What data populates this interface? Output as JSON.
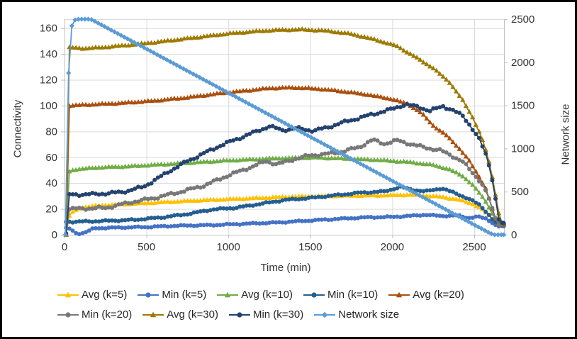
{
  "chart_data": {
    "type": "line",
    "title": "",
    "xlabel": "Time (min)",
    "ylabel_left": "Connectivity",
    "ylabel_right": "Network size",
    "grid": true,
    "x_axis": {
      "min": 0,
      "max": 2680,
      "ticks": [
        0,
        500,
        1000,
        1500,
        2000,
        2500
      ]
    },
    "left_axis": {
      "min": 0,
      "max": 167,
      "ticks": [
        0,
        20,
        40,
        60,
        80,
        100,
        120,
        140,
        160
      ]
    },
    "right_axis": {
      "min": 0,
      "max": 2500,
      "ticks": [
        0,
        500,
        1000,
        1500,
        2000,
        2500
      ]
    },
    "legend_rows": [
      [
        "avg_k5",
        "min_k5",
        "avg_k10",
        "min_k10",
        "avg_k20"
      ],
      [
        "min_k20",
        "avg_k30",
        "min_k30",
        "network_size"
      ]
    ],
    "series": [
      {
        "key": "avg_k5",
        "label": "Avg (k=5)",
        "color": "#FFC000",
        "marker": "triangle",
        "axis": "left",
        "jitter": 0.4,
        "points": [
          [
            10,
            0
          ],
          [
            20,
            12
          ],
          [
            40,
            17
          ],
          [
            70,
            19
          ],
          [
            100,
            21
          ],
          [
            200,
            22.5
          ],
          [
            350,
            23.5
          ],
          [
            500,
            24.5
          ],
          [
            650,
            25.5
          ],
          [
            800,
            26.5
          ],
          [
            1000,
            27.5
          ],
          [
            1200,
            28.5
          ],
          [
            1400,
            29.5
          ],
          [
            1600,
            30
          ],
          [
            1800,
            30.3
          ],
          [
            2000,
            30.6
          ],
          [
            2100,
            31
          ],
          [
            2200,
            30.3
          ],
          [
            2300,
            29.3
          ],
          [
            2400,
            27.3
          ],
          [
            2480,
            24.5
          ],
          [
            2540,
            20.5
          ],
          [
            2590,
            15
          ],
          [
            2620,
            10.5
          ],
          [
            2645,
            8
          ],
          [
            2680,
            8
          ]
        ]
      },
      {
        "key": "min_k5",
        "label": "Min (k=5)",
        "color": "#4472C4",
        "marker": "circle",
        "axis": "left",
        "jitter": 0.5,
        "points": [
          [
            10,
            5
          ],
          [
            40,
            4.5
          ],
          [
            60,
            1.5
          ],
          [
            100,
            0.8
          ],
          [
            140,
            2.5
          ],
          [
            180,
            5
          ],
          [
            300,
            5.5
          ],
          [
            500,
            6
          ],
          [
            700,
            7
          ],
          [
            900,
            7.5
          ],
          [
            1100,
            8.5
          ],
          [
            1300,
            9.5
          ],
          [
            1500,
            11
          ],
          [
            1700,
            12.5
          ],
          [
            1850,
            13.5
          ],
          [
            2000,
            13.8
          ],
          [
            2100,
            14.5
          ],
          [
            2200,
            15.5
          ],
          [
            2300,
            14.5
          ],
          [
            2400,
            15
          ],
          [
            2460,
            13
          ],
          [
            2520,
            14
          ],
          [
            2570,
            12.5
          ],
          [
            2610,
            9.5
          ],
          [
            2640,
            6.5
          ],
          [
            2680,
            6.5
          ]
        ]
      },
      {
        "key": "avg_k10",
        "label": "Avg (k=10)",
        "color": "#70AD47",
        "marker": "triangle",
        "axis": "left",
        "jitter": 0.4,
        "points": [
          [
            10,
            0
          ],
          [
            22,
            42
          ],
          [
            30,
            49
          ],
          [
            60,
            50.5
          ],
          [
            200,
            52
          ],
          [
            400,
            53
          ],
          [
            600,
            54.5
          ],
          [
            800,
            56
          ],
          [
            1000,
            57.5
          ],
          [
            1200,
            58.7
          ],
          [
            1400,
            59.5
          ],
          [
            1550,
            59.7
          ],
          [
            1700,
            59
          ],
          [
            1900,
            58
          ],
          [
            2100,
            56.3
          ],
          [
            2250,
            54
          ],
          [
            2350,
            50.5
          ],
          [
            2430,
            45.5
          ],
          [
            2490,
            38.5
          ],
          [
            2540,
            31
          ],
          [
            2580,
            24
          ],
          [
            2615,
            15
          ],
          [
            2645,
            8.5
          ],
          [
            2680,
            8.5
          ]
        ]
      },
      {
        "key": "min_k10",
        "label": "Min (k=10)",
        "color": "#255E91",
        "marker": "circle",
        "axis": "left",
        "jitter": 0.6,
        "points": [
          [
            10,
            10
          ],
          [
            150,
            10.3
          ],
          [
            420,
            11.5
          ],
          [
            600,
            13.5
          ],
          [
            750,
            16
          ],
          [
            900,
            19.5
          ],
          [
            1050,
            21
          ],
          [
            1200,
            24
          ],
          [
            1350,
            27
          ],
          [
            1500,
            28.5
          ],
          [
            1650,
            30.5
          ],
          [
            1800,
            32.5
          ],
          [
            1950,
            33.5
          ],
          [
            2050,
            37
          ],
          [
            2120,
            35
          ],
          [
            2200,
            33.5
          ],
          [
            2300,
            36
          ],
          [
            2400,
            31.5
          ],
          [
            2470,
            27.5
          ],
          [
            2530,
            23.5
          ],
          [
            2580,
            17
          ],
          [
            2615,
            11
          ],
          [
            2645,
            8.5
          ],
          [
            2680,
            8.5
          ]
        ]
      },
      {
        "key": "avg_k20",
        "label": "Avg (k=20)",
        "color": "#AA500F",
        "marker": "triangle",
        "axis": "left",
        "jitter": 0.4,
        "points": [
          [
            10,
            0
          ],
          [
            18,
            70
          ],
          [
            28,
            100
          ],
          [
            150,
            100.8
          ],
          [
            350,
            102
          ],
          [
            550,
            103.8
          ],
          [
            750,
            106.3
          ],
          [
            950,
            109.5
          ],
          [
            1100,
            111.5
          ],
          [
            1250,
            113.5
          ],
          [
            1400,
            114
          ],
          [
            1550,
            113
          ],
          [
            1700,
            111
          ],
          [
            1850,
            108.5
          ],
          [
            2000,
            105
          ],
          [
            2100,
            101
          ],
          [
            2180,
            94
          ],
          [
            2250,
            84.5
          ],
          [
            2330,
            77
          ],
          [
            2400,
            68
          ],
          [
            2460,
            59
          ],
          [
            2520,
            47
          ],
          [
            2570,
            36
          ],
          [
            2605,
            22
          ],
          [
            2635,
            10
          ],
          [
            2660,
            8
          ],
          [
            2680,
            8
          ]
        ]
      },
      {
        "key": "min_k20",
        "label": "Min (k=20)",
        "color": "#787878",
        "marker": "circle",
        "axis": "left",
        "jitter": 1.1,
        "points": [
          [
            10,
            0
          ],
          [
            18,
            15
          ],
          [
            30,
            20
          ],
          [
            250,
            20.8
          ],
          [
            400,
            25
          ],
          [
            550,
            28.5
          ],
          [
            700,
            33
          ],
          [
            850,
            38
          ],
          [
            1000,
            46
          ],
          [
            1130,
            52
          ],
          [
            1230,
            57
          ],
          [
            1300,
            54.5
          ],
          [
            1400,
            58.5
          ],
          [
            1500,
            61.5
          ],
          [
            1600,
            62.5
          ],
          [
            1700,
            64.5
          ],
          [
            1800,
            68
          ],
          [
            1880,
            73.5
          ],
          [
            1950,
            70.5
          ],
          [
            2030,
            73
          ],
          [
            2120,
            70
          ],
          [
            2200,
            67.5
          ],
          [
            2290,
            65.5
          ],
          [
            2360,
            61.5
          ],
          [
            2430,
            56.5
          ],
          [
            2490,
            48
          ],
          [
            2540,
            41
          ],
          [
            2585,
            30
          ],
          [
            2615,
            18
          ],
          [
            2645,
            8.5
          ],
          [
            2680,
            8.5
          ]
        ]
      },
      {
        "key": "avg_k30",
        "label": "Avg (k=30)",
        "color": "#9D7A00",
        "marker": "triangle",
        "axis": "left",
        "jitter": 0.4,
        "points": [
          [
            10,
            0
          ],
          [
            16,
            85
          ],
          [
            22,
            128
          ],
          [
            30,
            145
          ],
          [
            120,
            144.3
          ],
          [
            250,
            145.3
          ],
          [
            400,
            147
          ],
          [
            550,
            149
          ],
          [
            700,
            151.3
          ],
          [
            850,
            153.5
          ],
          [
            1000,
            155.8
          ],
          [
            1150,
            157.4
          ],
          [
            1300,
            158.6
          ],
          [
            1450,
            159
          ],
          [
            1600,
            158
          ],
          [
            1750,
            155.5
          ],
          [
            1900,
            151
          ],
          [
            2030,
            146
          ],
          [
            2150,
            137
          ],
          [
            2250,
            129
          ],
          [
            2350,
            118
          ],
          [
            2430,
            104
          ],
          [
            2490,
            91
          ],
          [
            2540,
            77
          ],
          [
            2580,
            62
          ],
          [
            2610,
            45
          ],
          [
            2635,
            28
          ],
          [
            2655,
            13
          ],
          [
            2670,
            9
          ],
          [
            2680,
            9
          ]
        ]
      },
      {
        "key": "min_k30",
        "label": "Min (k=30)",
        "color": "#24426F",
        "marker": "circle",
        "axis": "left",
        "jitter": 1.1,
        "points": [
          [
            10,
            0
          ],
          [
            18,
            25
          ],
          [
            30,
            31
          ],
          [
            200,
            31.5
          ],
          [
            350,
            33
          ],
          [
            480,
            37
          ],
          [
            560,
            43
          ],
          [
            650,
            50
          ],
          [
            750,
            57
          ],
          [
            850,
            63
          ],
          [
            950,
            69
          ],
          [
            1050,
            74
          ],
          [
            1150,
            79
          ],
          [
            1250,
            84
          ],
          [
            1330,
            81
          ],
          [
            1420,
            82.5
          ],
          [
            1520,
            80.5
          ],
          [
            1600,
            83
          ],
          [
            1700,
            87
          ],
          [
            1800,
            90.5
          ],
          [
            1900,
            94
          ],
          [
            1990,
            97
          ],
          [
            2080,
            101
          ],
          [
            2160,
            99
          ],
          [
            2230,
            96
          ],
          [
            2310,
            99.5
          ],
          [
            2370,
            96.5
          ],
          [
            2430,
            92
          ],
          [
            2480,
            84
          ],
          [
            2530,
            74
          ],
          [
            2575,
            61
          ],
          [
            2605,
            47
          ],
          [
            2630,
            28
          ],
          [
            2650,
            12
          ],
          [
            2665,
            9
          ],
          [
            2680,
            9
          ]
        ]
      },
      {
        "key": "network_size",
        "label": "Network size",
        "color": "#5B9BD5",
        "marker": "diamond",
        "axis": "right",
        "jitter": 0,
        "points": [
          [
            5,
            0
          ],
          [
            12,
            600
          ],
          [
            20,
            1500
          ],
          [
            28,
            2100
          ],
          [
            40,
            2400
          ],
          [
            60,
            2490
          ],
          [
            90,
            2500
          ],
          [
            160,
            2500
          ],
          [
            500,
            2155
          ],
          [
            1000,
            1645
          ],
          [
            1500,
            1135
          ],
          [
            2000,
            625
          ],
          [
            2300,
            320
          ],
          [
            2500,
            115
          ],
          [
            2615,
            0
          ],
          [
            2680,
            0
          ]
        ]
      }
    ]
  }
}
